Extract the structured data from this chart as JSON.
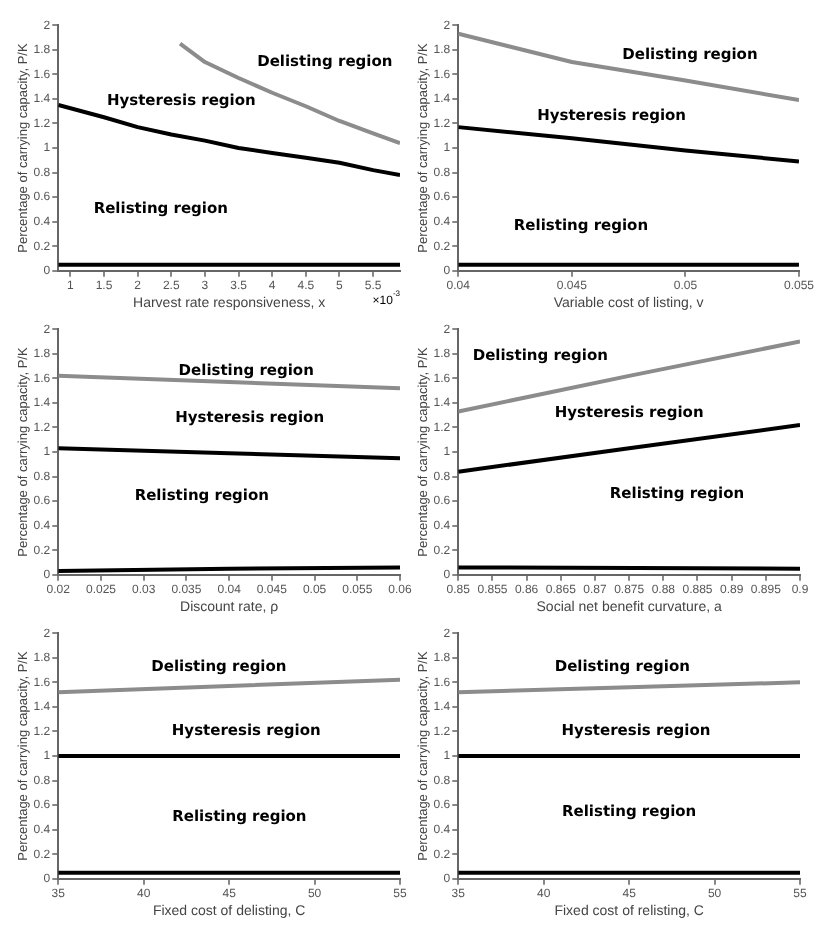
{
  "chart_data": [
    {
      "type": "line",
      "xlabel": "Harvest rate responsiveness, x",
      "ylabel": "Percentage of carrying capacity, P/K",
      "xlim": [
        0.82,
        5.9
      ],
      "xticks": [
        1,
        1.5,
        2,
        2.5,
        3,
        3.5,
        4,
        4.5,
        5,
        5.5
      ],
      "ylim": [
        0,
        2
      ],
      "yticks": [
        0,
        0.2,
        0.4,
        0.6,
        0.8,
        1,
        1.2,
        1.4,
        1.6,
        1.8,
        2
      ],
      "grid": false,
      "legend": false,
      "marker": "none",
      "line_style": "solid",
      "annotations": [
        "Delisting region",
        "Hysteresis region",
        "Relisting region",
        "×10$^{-3}$"
      ],
      "series": [
        {
          "color": "#8c8c8c",
          "x": [
            2.63,
            3,
            3.5,
            4,
            4.5,
            5,
            5.5,
            5.9
          ],
          "values": [
            1.85,
            1.7,
            1.57,
            1.45,
            1.34,
            1.22,
            1.12,
            1.04
          ]
        },
        {
          "color": "#000000",
          "x": [
            0.82,
            1.5,
            2,
            2.5,
            3,
            3.5,
            4,
            4.5,
            5,
            5.5,
            5.9
          ],
          "values": [
            1.35,
            1.25,
            1.17,
            1.11,
            1.06,
            1.0,
            0.96,
            0.92,
            0.88,
            0.82,
            0.78
          ]
        },
        {
          "color": "#000000",
          "x": [
            0.82,
            5.9
          ],
          "values": [
            0.05,
            0.05
          ]
        }
      ]
    },
    {
      "type": "line",
      "xlabel": "Variable cost of listing, v",
      "ylabel": "Percentage of carrying capacity, P/K",
      "xlim": [
        0.04,
        0.055
      ],
      "xticks": [
        0.04,
        0.045,
        0.05,
        0.055
      ],
      "ylim": [
        0,
        2
      ],
      "yticks": [
        0,
        0.2,
        0.4,
        0.6,
        0.8,
        1,
        1.2,
        1.4,
        1.6,
        1.8,
        2
      ],
      "grid": false,
      "legend": false,
      "marker": "none",
      "line_style": "solid",
      "annotations": [
        "Delisting region",
        "Hysteresis region",
        "Relisting region"
      ],
      "series": [
        {
          "color": "#8c8c8c",
          "x": [
            0.04,
            0.045,
            0.05,
            0.055
          ],
          "values": [
            1.93,
            1.7,
            1.55,
            1.39
          ]
        },
        {
          "color": "#000000",
          "x": [
            0.04,
            0.045,
            0.05,
            0.055
          ],
          "values": [
            1.17,
            1.08,
            0.98,
            0.89
          ]
        },
        {
          "color": "#000000",
          "x": [
            0.04,
            0.055
          ],
          "values": [
            0.05,
            0.05
          ]
        }
      ]
    },
    {
      "type": "line",
      "xlabel": "Discount rate, ρ",
      "ylabel": "Percentage of carrying capacity, P/K",
      "xlim": [
        0.02,
        0.06
      ],
      "xticks": [
        0.02,
        0.025,
        0.03,
        0.035,
        0.04,
        0.045,
        0.05,
        0.055,
        0.06
      ],
      "ylim": [
        0,
        2
      ],
      "yticks": [
        0,
        0.2,
        0.4,
        0.6,
        0.8,
        1,
        1.2,
        1.4,
        1.6,
        1.8,
        2
      ],
      "grid": false,
      "legend": false,
      "marker": "none",
      "line_style": "solid",
      "annotations": [
        "Delisting region",
        "Hysteresis region",
        "Relisting region"
      ],
      "series": [
        {
          "color": "#8c8c8c",
          "x": [
            0.02,
            0.04,
            0.06
          ],
          "values": [
            1.62,
            1.57,
            1.52
          ]
        },
        {
          "color": "#000000",
          "x": [
            0.02,
            0.04,
            0.06
          ],
          "values": [
            1.03,
            0.99,
            0.95
          ]
        },
        {
          "color": "#000000",
          "x": [
            0.02,
            0.04,
            0.06
          ],
          "values": [
            0.03,
            0.05,
            0.06
          ]
        }
      ]
    },
    {
      "type": "line",
      "xlabel": "Social net benefit curvature, a",
      "ylabel": "Percentage of carrying capacity, P/K",
      "xlim": [
        0.85,
        0.9
      ],
      "xticks": [
        0.85,
        0.855,
        0.86,
        0.865,
        0.87,
        0.875,
        0.88,
        0.885,
        0.89,
        0.895,
        0.9
      ],
      "ylim": [
        0,
        2
      ],
      "yticks": [
        0,
        0.2,
        0.4,
        0.6,
        0.8,
        1,
        1.2,
        1.4,
        1.6,
        1.8,
        2
      ],
      "grid": false,
      "legend": false,
      "marker": "none",
      "line_style": "solid",
      "annotations": [
        "Delisting region",
        "Hysteresis region",
        "Relisting region"
      ],
      "series": [
        {
          "color": "#8c8c8c",
          "x": [
            0.85,
            0.875,
            0.9
          ],
          "values": [
            1.33,
            1.62,
            1.9
          ]
        },
        {
          "color": "#000000",
          "x": [
            0.85,
            0.875,
            0.9
          ],
          "values": [
            0.84,
            1.03,
            1.22
          ]
        },
        {
          "color": "#000000",
          "x": [
            0.85,
            0.9
          ],
          "values": [
            0.06,
            0.05
          ]
        }
      ]
    },
    {
      "type": "line",
      "xlabel": "Fixed cost of delisting, C",
      "ylabel": "Percentage of carrying capacity, P/K",
      "xlim": [
        35,
        55
      ],
      "xticks": [
        35,
        40,
        45,
        50,
        55
      ],
      "ylim": [
        0,
        2
      ],
      "yticks": [
        0,
        0.2,
        0.4,
        0.6,
        0.8,
        1,
        1.2,
        1.4,
        1.6,
        1.8,
        2
      ],
      "grid": false,
      "legend": false,
      "marker": "none",
      "line_style": "solid",
      "annotations": [
        "Delisting region",
        "Hysteresis region",
        "Relisting region"
      ],
      "series": [
        {
          "color": "#8c8c8c",
          "x": [
            35,
            45,
            55
          ],
          "values": [
            1.52,
            1.57,
            1.62
          ]
        },
        {
          "color": "#000000",
          "x": [
            35,
            55
          ],
          "values": [
            1.0,
            1.0
          ]
        },
        {
          "color": "#000000",
          "x": [
            35,
            55
          ],
          "values": [
            0.05,
            0.05
          ]
        }
      ]
    },
    {
      "type": "line",
      "xlabel": "Fixed cost of relisting, C",
      "ylabel": "Percentage of carrying capacity, P/K",
      "xlim": [
        35,
        55
      ],
      "xticks": [
        35,
        40,
        45,
        50,
        55
      ],
      "ylim": [
        0,
        2
      ],
      "yticks": [
        0,
        0.2,
        0.4,
        0.6,
        0.8,
        1,
        1.2,
        1.4,
        1.6,
        1.8,
        2
      ],
      "grid": false,
      "legend": false,
      "marker": "none",
      "line_style": "solid",
      "annotations": [
        "Delisting region",
        "Hysteresis region",
        "Relisting region"
      ],
      "series": [
        {
          "color": "#8c8c8c",
          "x": [
            35,
            45,
            55
          ],
          "values": [
            1.52,
            1.56,
            1.6
          ]
        },
        {
          "color": "#000000",
          "x": [
            35,
            55
          ],
          "values": [
            1.0,
            1.0
          ]
        },
        {
          "color": "#000000",
          "x": [
            35,
            55
          ],
          "values": [
            0.05,
            0.05
          ]
        }
      ]
    }
  ]
}
